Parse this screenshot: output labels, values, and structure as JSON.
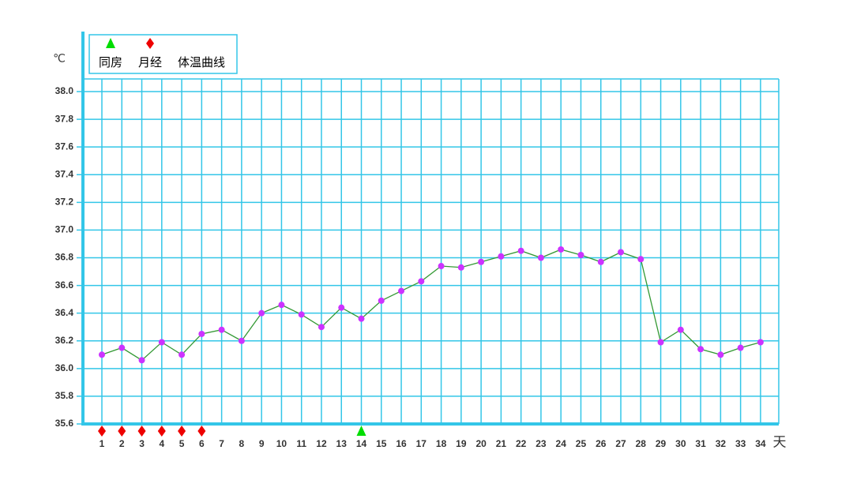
{
  "chart_data": {
    "type": "line",
    "y_unit": "℃",
    "x_unit": "天",
    "categories": [
      "1",
      "2",
      "3",
      "4",
      "5",
      "6",
      "7",
      "8",
      "9",
      "10",
      "11",
      "12",
      "13",
      "14",
      "15",
      "16",
      "17",
      "18",
      "19",
      "20",
      "21",
      "22",
      "23",
      "24",
      "25",
      "26",
      "27",
      "28",
      "29",
      "30",
      "31",
      "32",
      "33",
      "34"
    ],
    "series": [
      {
        "name": "体温曲线",
        "color": "#339933",
        "point_color": "#cc33ff",
        "values": [
          36.1,
          36.15,
          36.06,
          36.19,
          36.1,
          36.25,
          36.28,
          36.2,
          36.4,
          36.46,
          36.39,
          36.3,
          36.44,
          36.36,
          36.49,
          36.56,
          36.63,
          36.74,
          36.73,
          36.77,
          36.81,
          36.85,
          36.8,
          36.86,
          36.82,
          36.77,
          36.84,
          36.79,
          36.19,
          36.28,
          36.14,
          36.1,
          36.15,
          36.19
        ]
      }
    ],
    "events": [
      {
        "name": "同房",
        "marker": "triangle",
        "color": "#00dd00",
        "days": [
          14
        ]
      },
      {
        "name": "月经",
        "marker": "diamond",
        "color": "#ee0000",
        "days": [
          1,
          2,
          3,
          4,
          5,
          6
        ]
      }
    ],
    "ylim": [
      35.6,
      38.0
    ],
    "yticks": [
      {
        "value": 35.6,
        "label": "35.6"
      },
      {
        "value": 35.8,
        "label": "35.8"
      },
      {
        "value": 36.0,
        "label": "36.0"
      },
      {
        "value": 36.2,
        "label": "36.2"
      },
      {
        "value": 36.4,
        "label": "36.4"
      },
      {
        "value": 36.6,
        "label": "36.6"
      },
      {
        "value": 36.8,
        "label": "36.8"
      },
      {
        "value": 37.0,
        "label": "37.0"
      },
      {
        "value": 37.2,
        "label": "37.2"
      },
      {
        "value": 37.4,
        "label": "37.4"
      },
      {
        "value": 37.6,
        "label": "37.6"
      },
      {
        "value": 37.8,
        "label": "37.8"
      },
      {
        "value": 38.0,
        "label": "38.0"
      }
    ],
    "highlight_color": "#ee1111",
    "highlight_categories": [
      "7",
      "14",
      "21",
      "28"
    ],
    "highlight_yticks": [
      35.6,
      36.6,
      37.6
    ],
    "grid": true,
    "grid_color": "#33c6e8",
    "unit_color": "#ff66cc"
  }
}
